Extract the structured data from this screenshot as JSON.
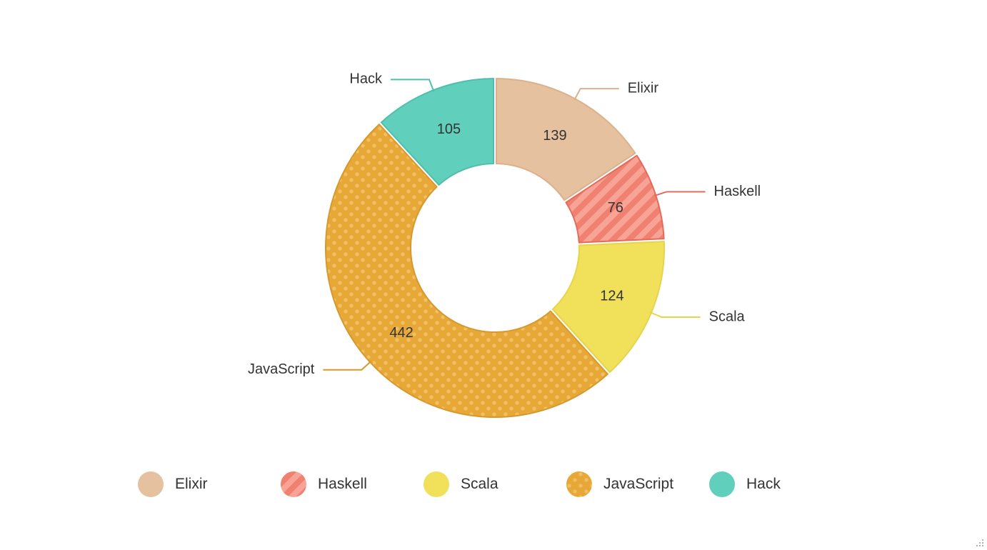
{
  "chart_data": {
    "type": "pie",
    "variant": "donut",
    "title": "",
    "categories": [
      "Elixir",
      "Haskell",
      "Scala",
      "JavaScript",
      "Hack"
    ],
    "values": [
      139,
      76,
      124,
      442,
      105
    ],
    "colors": [
      "#e6c1a0",
      "#f08070",
      "#f0e05a",
      "#e8a838",
      "#60cfbc"
    ],
    "stroke_colors": [
      "#ddb08c",
      "#e56a5a",
      "#e6d44a",
      "#d6992c",
      "#4fbfac"
    ],
    "patterns": [
      "solid",
      "stripes",
      "solid",
      "dots",
      "solid"
    ],
    "legend_position": "bottom",
    "data_labels": true
  },
  "legend": {
    "items": [
      {
        "label": "Elixir",
        "color": "#e6c1a0",
        "pattern": "solid"
      },
      {
        "label": "Haskell",
        "color": "#f08070",
        "pattern": "stripes"
      },
      {
        "label": "Scala",
        "color": "#f0e05a",
        "pattern": "solid"
      },
      {
        "label": "JavaScript",
        "color": "#e8a838",
        "pattern": "dots"
      },
      {
        "label": "Hack",
        "color": "#60cfbc",
        "pattern": "solid"
      }
    ]
  },
  "icons": {
    "resize": "resize-grip-icon"
  }
}
